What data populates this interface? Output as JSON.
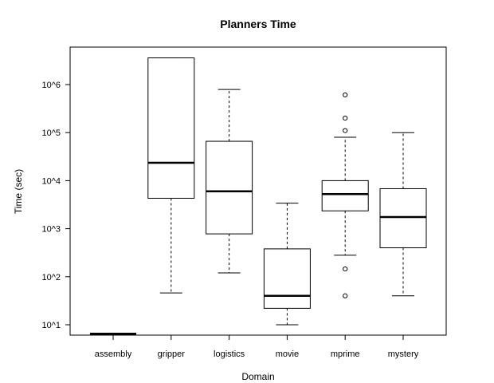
{
  "chart_data": {
    "type": "boxplot",
    "title": "Planners Time",
    "xlabel": "Domain",
    "ylabel": "Time (sec)",
    "yscale": "log10",
    "ylim": [
      6.0,
      6500000
    ],
    "yticks": [
      {
        "value": 10,
        "label": "10^1"
      },
      {
        "value": 100,
        "label": "10^2"
      },
      {
        "value": 1000,
        "label": "10^3"
      },
      {
        "value": 10000,
        "label": "10^4"
      },
      {
        "value": 100000,
        "label": "10^5"
      },
      {
        "value": 1000000,
        "label": "10^6"
      }
    ],
    "categories": [
      "assembly",
      "gripper",
      "logistics",
      "movie",
      "mprime",
      "mystery"
    ],
    "boxes": [
      {
        "name": "assembly",
        "whisker_low": 6.5,
        "q1": 6.5,
        "median": 6.5,
        "q3": 6.5,
        "whisker_high": 6.5,
        "outliers": [],
        "collapsed": true
      },
      {
        "name": "gripper",
        "whisker_low": 46,
        "q1": 4300,
        "median": 23500,
        "q3": 3600000,
        "whisker_high": 3600000,
        "outliers": []
      },
      {
        "name": "logistics",
        "whisker_low": 120,
        "q1": 780,
        "median": 6000,
        "q3": 66000,
        "whisker_high": 790000,
        "outliers": []
      },
      {
        "name": "movie",
        "whisker_low": 10,
        "q1": 22,
        "median": 40,
        "q3": 380,
        "whisker_high": 3400,
        "outliers": []
      },
      {
        "name": "mprime",
        "whisker_low": 280,
        "q1": 2350,
        "median": 5250,
        "q3": 10000,
        "whisker_high": 80000,
        "outliers": [
          40,
          145,
          110000,
          200000,
          610000
        ]
      },
      {
        "name": "mystery",
        "whisker_low": 40,
        "q1": 400,
        "median": 1750,
        "q3": 6800,
        "whisker_high": 100000,
        "outliers": []
      }
    ]
  }
}
